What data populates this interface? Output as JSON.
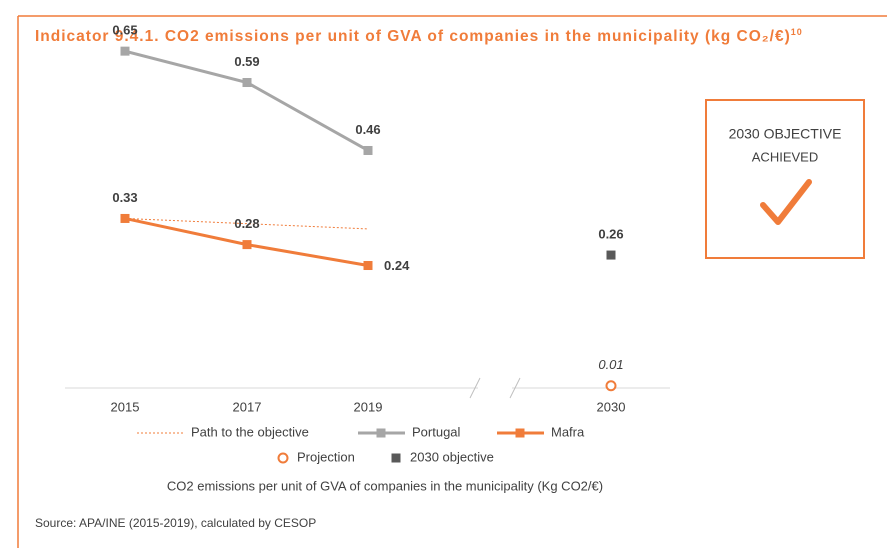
{
  "chart_data": {
    "type": "line",
    "title": "Indicator 9.4.1. CO2 emissions per unit of GVA of companies in the municipality (kg CO₂/€)",
    "title_note": "10",
    "categories": [
      "2015",
      "2017",
      "2019",
      "2030"
    ],
    "ylim": [
      0,
      0.7
    ],
    "series": [
      {
        "name": "Path to the objective",
        "color": "#f07c3a",
        "style": "dotted",
        "values": [
          0.33,
          0.32,
          0.31,
          null
        ]
      },
      {
        "name": "Portugal",
        "color": "#a6a6a6",
        "style": "line",
        "values": [
          0.65,
          0.59,
          0.46,
          null
        ]
      },
      {
        "name": "Mafra",
        "color": "#f07c3a",
        "style": "line",
        "values": [
          0.33,
          0.28,
          0.24,
          null
        ]
      },
      {
        "name": "Projection",
        "color": "#f07c3a",
        "style": "circle",
        "values": [
          null,
          null,
          null,
          0.01
        ]
      },
      {
        "name": "2030 objective",
        "color": "#595959",
        "style": "square",
        "values": [
          null,
          null,
          null,
          0.26
        ]
      }
    ],
    "status": [
      "2030 OBJECTIVE",
      "ACHIEVED"
    ],
    "caption": "CO2 emissions per unit of GVA of companies in the municipality (Kg CO2/€)",
    "source": "Source: APA/INE (2015-2019), calculated by CESOP"
  }
}
